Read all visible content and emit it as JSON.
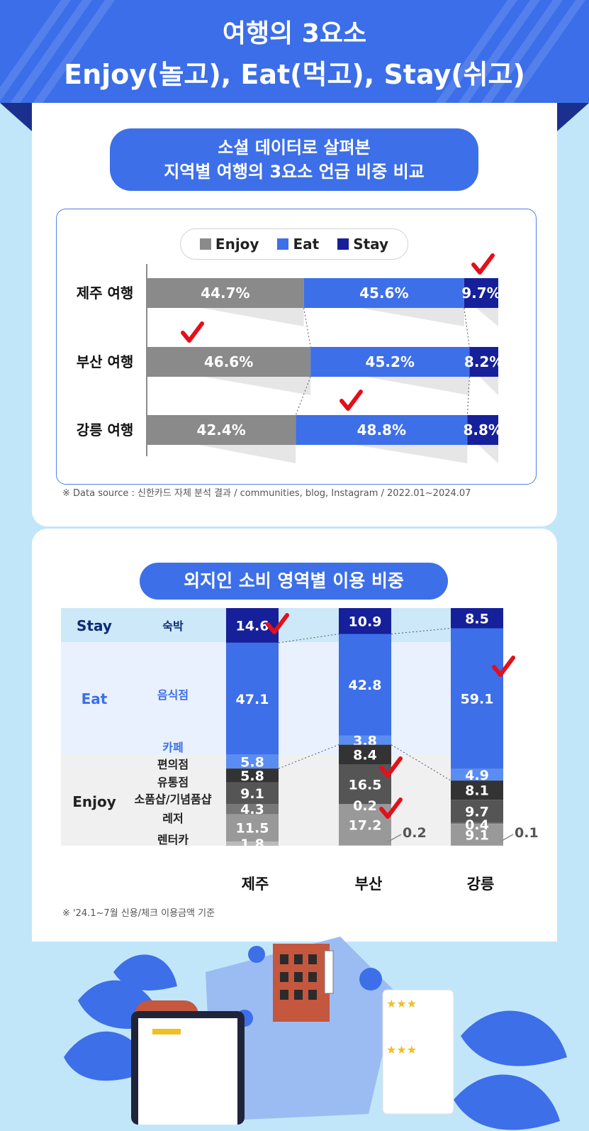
{
  "header": {
    "line1": "여행의 3요소",
    "line2": "Enjoy(놀고), Eat(먹고), Stay(쉬고)"
  },
  "section1": {
    "title_line1": "소셜 데이터로 살펴본",
    "title_line2": "지역별 여행의 3요소 언급 비중 비교",
    "source": "※ Data source : 신한카드 자체 분석 결과 / communities, blog, Instagram / 2022.01~2024.07"
  },
  "section2": {
    "title": "외지인 소비 영역별 이용 비중",
    "footnote": "※ '24.1~7월 신용/체크 이용금액 기준"
  },
  "colors": {
    "enjoy": "#8a8a8a",
    "eat": "#3d6fe9",
    "stay": "#16209a",
    "check": "#e3101a"
  },
  "chart_data": [
    {
      "type": "bar",
      "stacked": true,
      "orientation": "horizontal",
      "categories": [
        "제주 여행",
        "부산 여행",
        "강릉 여행"
      ],
      "series": [
        {
          "name": "Enjoy",
          "values": [
            44.7,
            46.6,
            42.4
          ],
          "labels": [
            "44.7%",
            "46.6%",
            "42.4%"
          ]
        },
        {
          "name": "Eat",
          "values": [
            45.6,
            45.2,
            48.8
          ],
          "labels": [
            "45.6%",
            "45.2%",
            "48.8%"
          ]
        },
        {
          "name": "Stay",
          "values": [
            9.7,
            8.2,
            8.8
          ],
          "labels": [
            "9.7%",
            "8.2%",
            "8.8%"
          ]
        }
      ],
      "checks": [
        [
          2,
          0
        ],
        [
          0,
          1
        ],
        [
          1,
          2
        ]
      ],
      "legend": "top"
    },
    {
      "type": "bar",
      "stacked": true,
      "orientation": "vertical",
      "categories": [
        "제주",
        "부산",
        "강릉"
      ],
      "groups": [
        {
          "name": "Stay",
          "items": [
            "숙박"
          ]
        },
        {
          "name": "Eat",
          "items": [
            "음식점",
            "카페"
          ]
        },
        {
          "name": "Enjoy",
          "items": [
            "편의점",
            "유통점",
            "소품샵/기념품샵",
            "레저",
            "렌터카"
          ]
        }
      ],
      "items": [
        "숙박",
        "음식점",
        "카페",
        "편의점",
        "유통점",
        "소품샵/기념품샵",
        "레저",
        "렌터카"
      ],
      "values": {
        "제주": [
          14.6,
          47.1,
          5.8,
          5.8,
          9.1,
          4.3,
          11.5,
          1.8
        ],
        "부산": [
          10.9,
          42.8,
          3.8,
          8.4,
          16.5,
          0.2,
          17.2,
          0.2
        ],
        "강릉": [
          8.5,
          59.1,
          4.9,
          8.1,
          9.7,
          0.4,
          9.1,
          0.1
        ]
      },
      "labels": {
        "제주": [
          "14.6",
          "47.1",
          "5.8",
          "5.8",
          "9.1",
          "4.3",
          "11.5",
          "1.8"
        ],
        "부산": [
          "10.9",
          "42.8",
          "3.8",
          "8.4",
          "16.5",
          "0.2",
          "17.2",
          "0.2"
        ],
        "강릉": [
          "8.5",
          "59.1",
          "4.9",
          "8.1",
          "9.7",
          "0.4",
          "9.1",
          "0.1"
        ]
      },
      "checks": [
        [
          "제주",
          0
        ],
        [
          "부산",
          4
        ],
        [
          "부산",
          6
        ],
        [
          "강릉",
          1
        ]
      ]
    }
  ]
}
